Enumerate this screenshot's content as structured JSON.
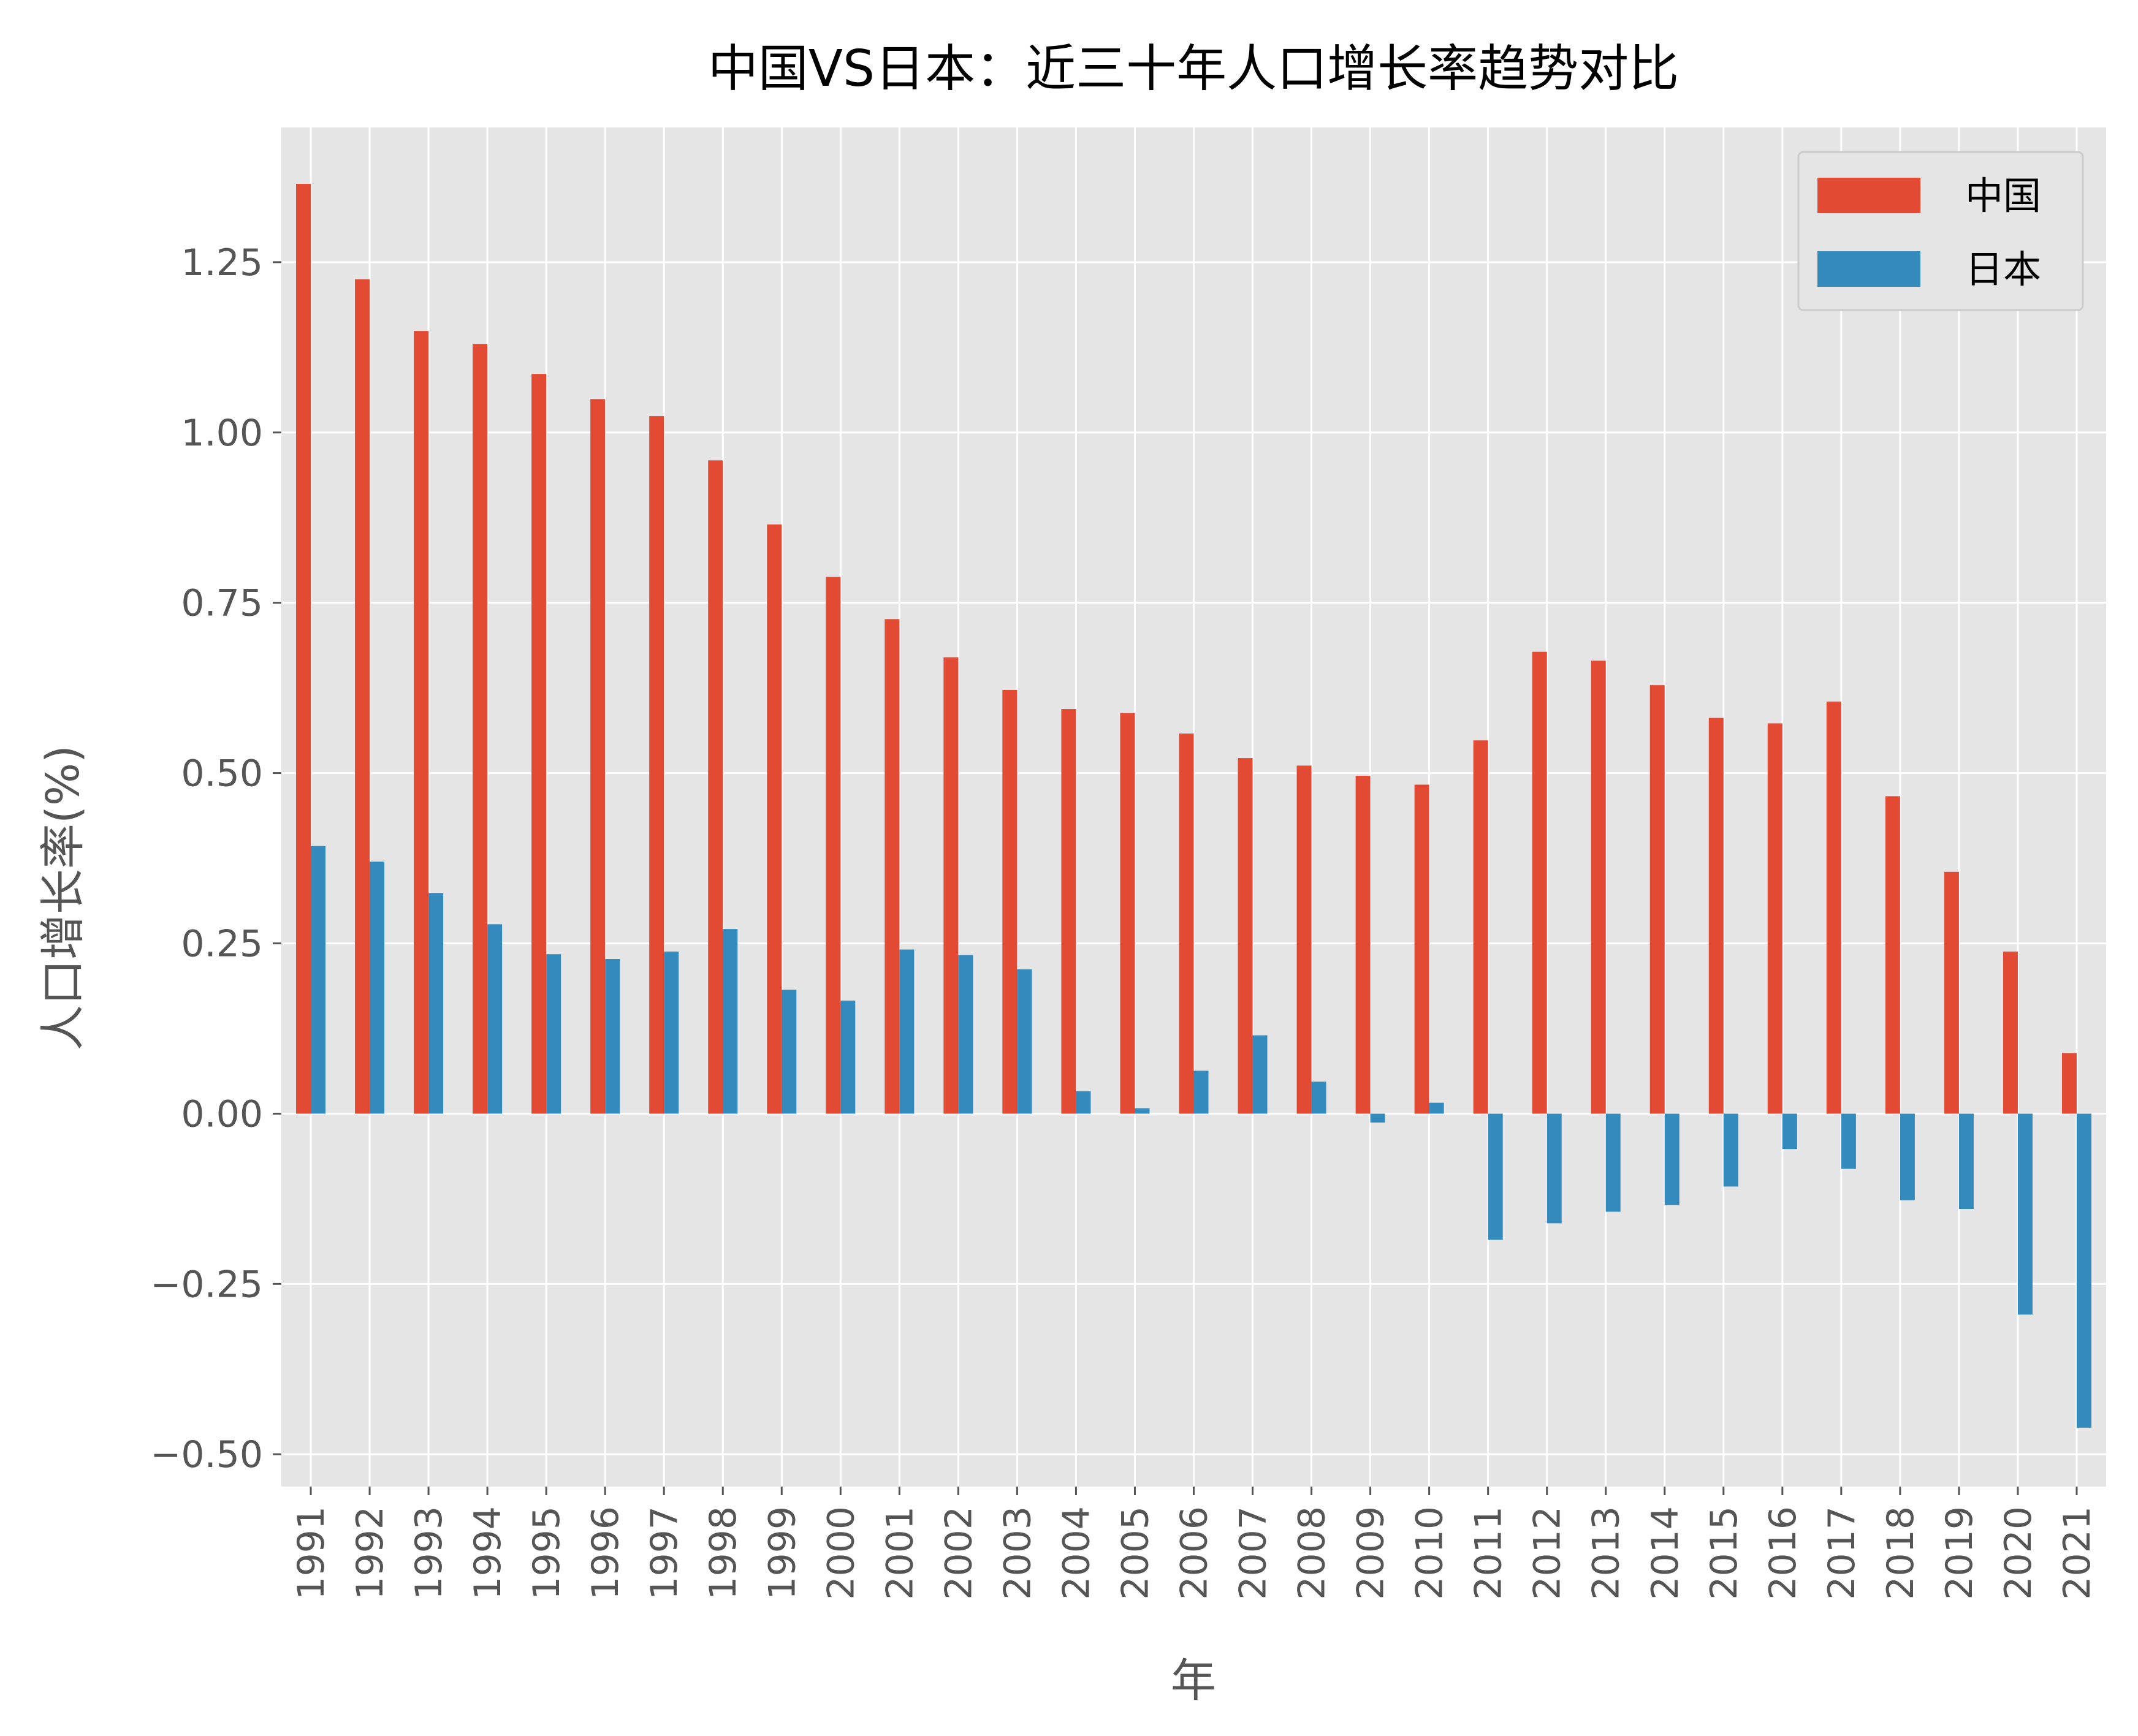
{
  "chart_data": {
    "type": "bar",
    "title": "中国VS日本：近三十年人口增长率趋势对比",
    "xlabel": "年",
    "ylabel": "人口增长率(%)",
    "categories": [
      "1991",
      "1992",
      "1993",
      "1994",
      "1995",
      "1996",
      "1997",
      "1998",
      "1999",
      "2000",
      "2001",
      "2002",
      "2003",
      "2004",
      "2005",
      "2006",
      "2007",
      "2008",
      "2009",
      "2010",
      "2011",
      "2012",
      "2013",
      "2014",
      "2015",
      "2016",
      "2017",
      "2018",
      "2019",
      "2020",
      "2021"
    ],
    "series": [
      {
        "name": "中国",
        "color": "#E24A33",
        "values": [
          1.365,
          1.225,
          1.149,
          1.13,
          1.086,
          1.049,
          1.024,
          0.959,
          0.865,
          0.788,
          0.726,
          0.67,
          0.622,
          0.594,
          0.588,
          0.558,
          0.522,
          0.511,
          0.496,
          0.483,
          0.548,
          0.678,
          0.665,
          0.629,
          0.581,
          0.573,
          0.605,
          0.466,
          0.355,
          0.238,
          0.089
        ]
      },
      {
        "name": "日本",
        "color": "#348ABD",
        "values": [
          0.393,
          0.37,
          0.324,
          0.278,
          0.234,
          0.227,
          0.238,
          0.271,
          0.182,
          0.166,
          0.241,
          0.233,
          0.212,
          0.033,
          0.008,
          0.063,
          0.115,
          0.047,
          -0.013,
          0.016,
          -0.185,
          -0.161,
          -0.144,
          -0.134,
          -0.107,
          -0.052,
          -0.081,
          -0.127,
          -0.14,
          -0.295,
          -0.461
        ]
      }
    ],
    "yticks": [
      "−0.50",
      "−0.25",
      "0.00",
      "0.25",
      "0.50",
      "0.75",
      "1.00",
      "1.25"
    ],
    "ytick_values": [
      -0.5,
      -0.25,
      0,
      0.25,
      0.5,
      0.75,
      1.0,
      1.25
    ],
    "ylim": [
      -0.5475,
      1.4478
    ],
    "grid": true,
    "legend_position": "top-right",
    "style": "ggplot"
  }
}
